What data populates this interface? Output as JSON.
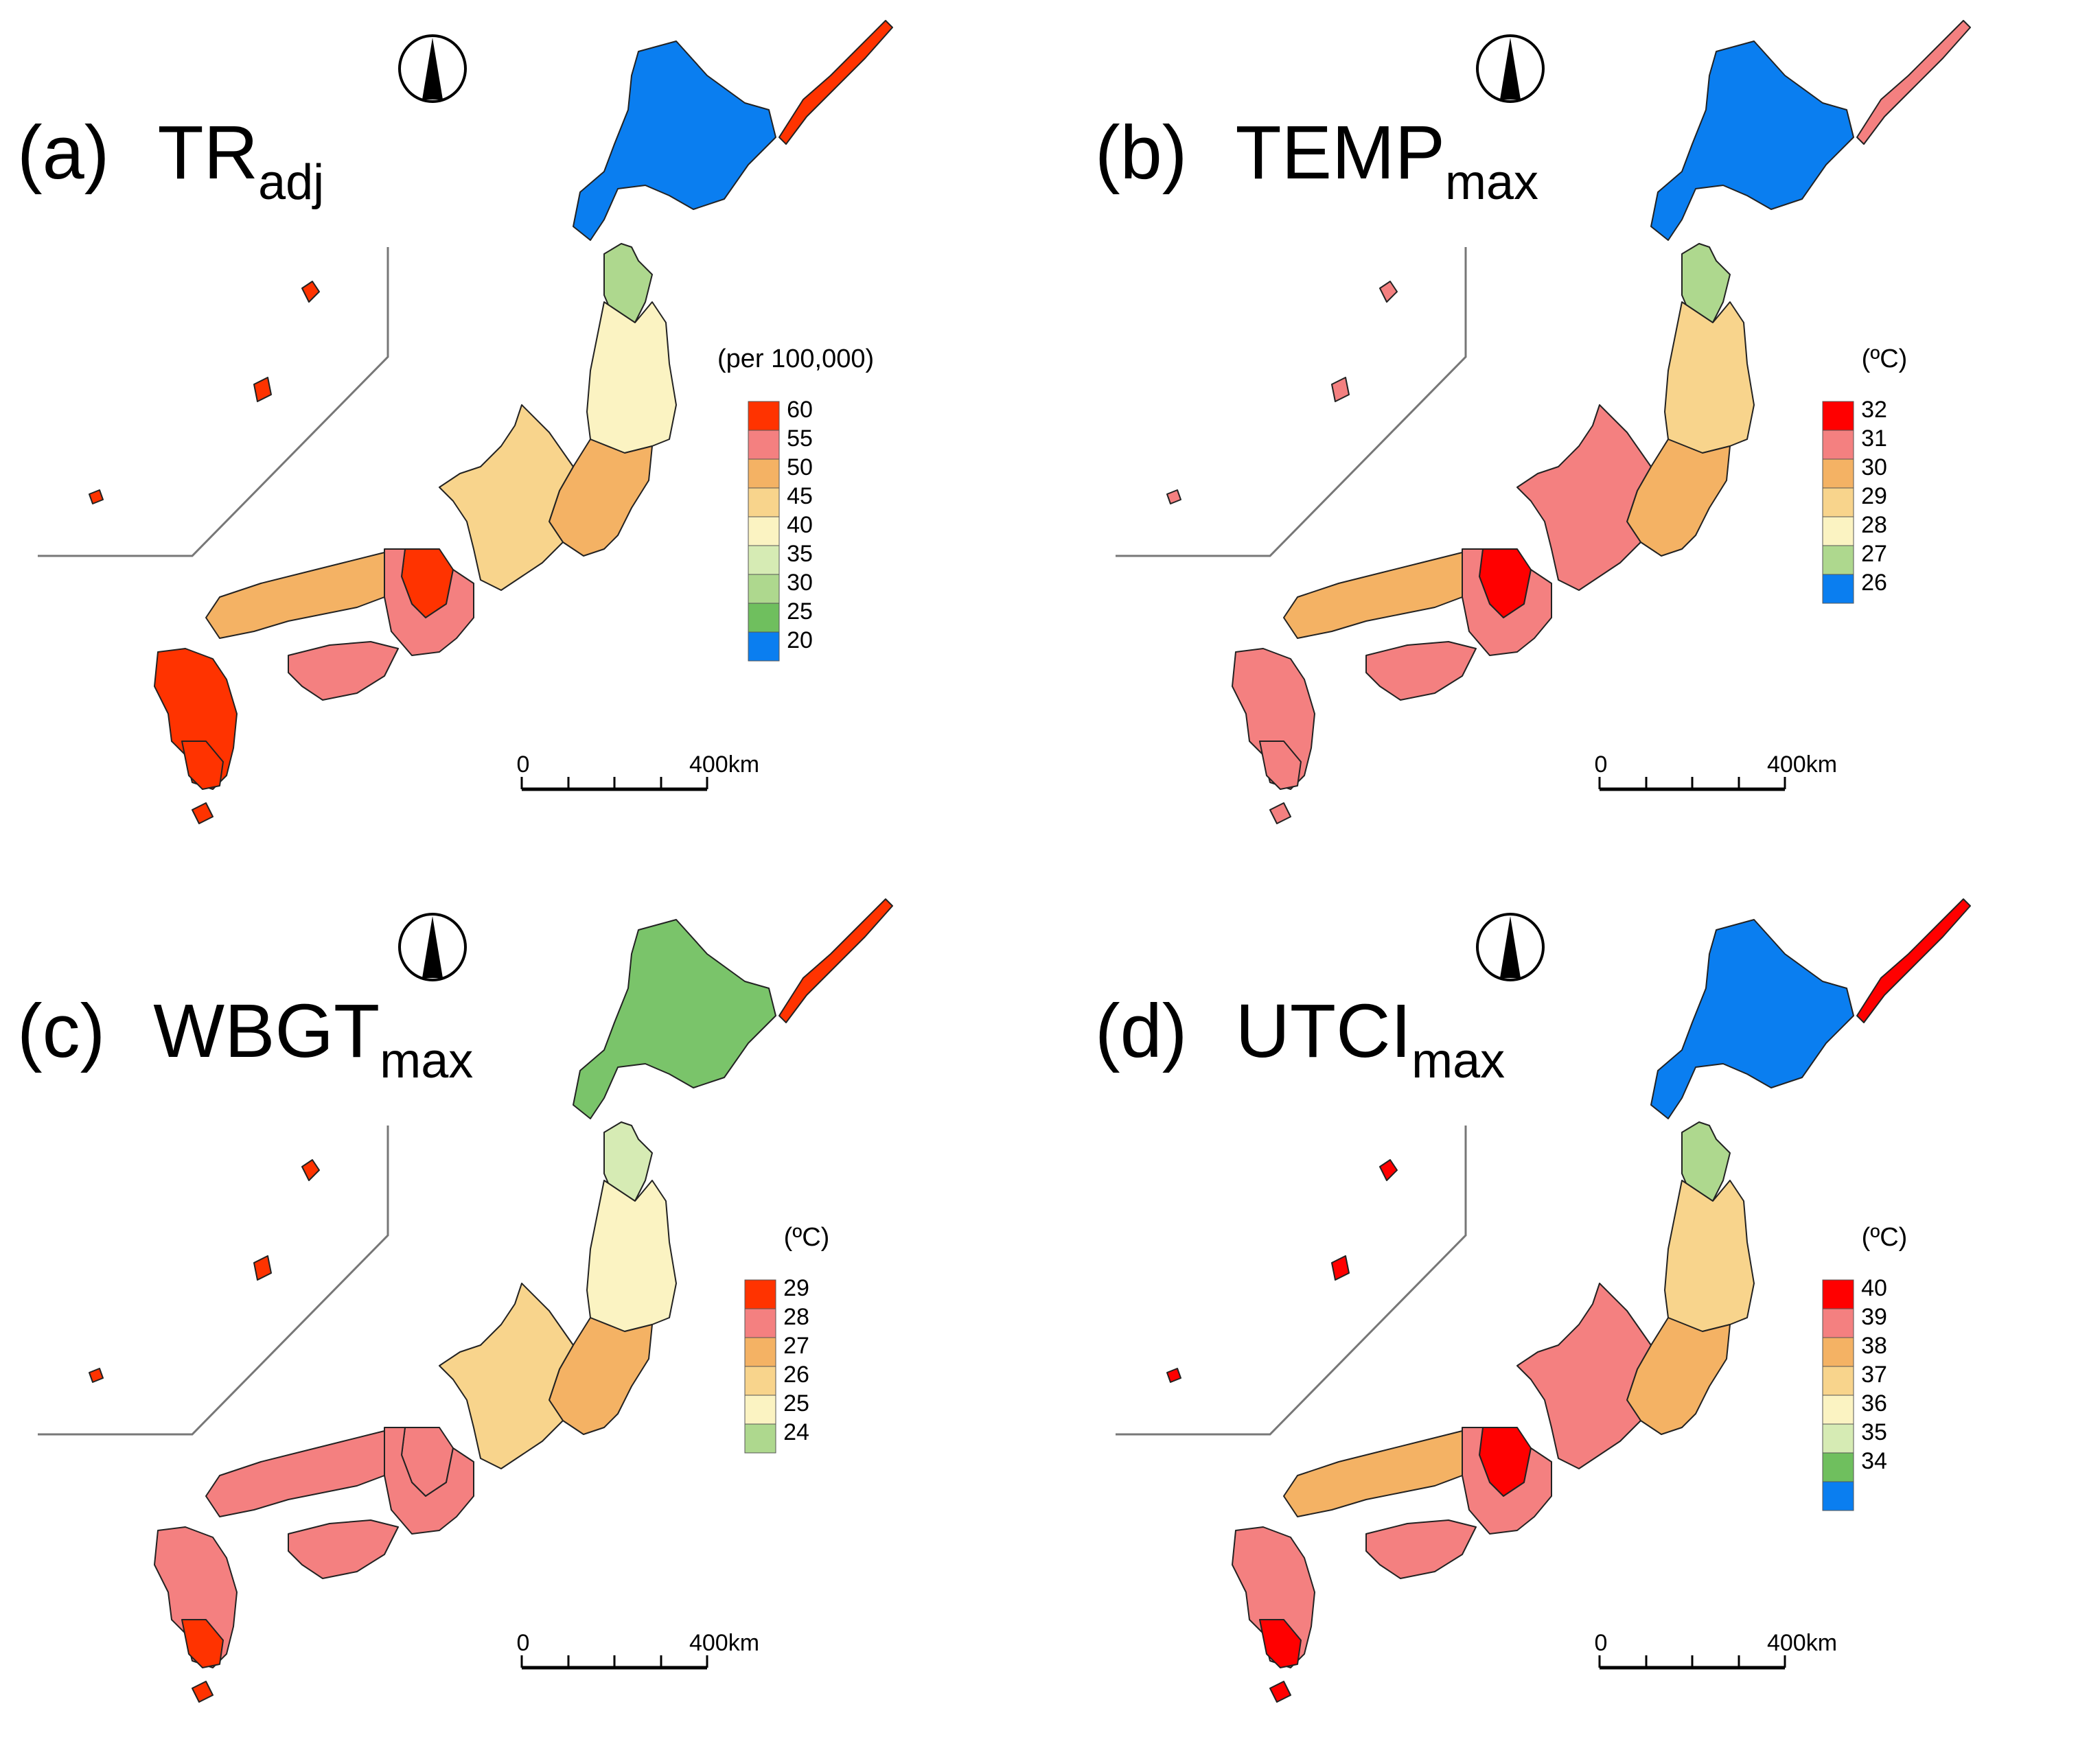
{
  "panels": [
    {
      "letter": "(a)",
      "var_main": "TR",
      "var_sub": "adj",
      "unit": "(per 100,000)",
      "legend": [
        {
          "label": "60",
          "color": "#ff3300"
        },
        {
          "label": "55",
          "color": "#f48080"
        },
        {
          "label": "50",
          "color": "#f4b264"
        },
        {
          "label": "45",
          "color": "#f8d48c"
        },
        {
          "label": "40",
          "color": "#fbf3c2"
        },
        {
          "label": "35",
          "color": "#d6ebb4"
        },
        {
          "label": "30",
          "color": "#aed88e"
        },
        {
          "label": "25",
          "color": "#6fbf5e"
        },
        {
          "label": "20",
          "color": "#0a7ef0"
        }
      ],
      "scale": {
        "start": "0",
        "end": "400km"
      },
      "colors": {
        "hokkaido": "#0a7ef0",
        "tohoku_north": "#aed88e",
        "tohoku": "#fbf3c2",
        "kanto": "#f4b264",
        "chubu": "#f8d48c",
        "kinki": "#f48080",
        "chugoku": "#f4b264",
        "shikoku": "#f48080",
        "kyushu": "#ff3300",
        "okinawa": "#ff3300",
        "hot1": "#ff3300",
        "hot2": "#ff3300"
      }
    },
    {
      "letter": "(b)",
      "var_main": "TEMP",
      "var_sub": "max",
      "unit": "(ºC)",
      "legend": [
        {
          "label": "32",
          "color": "#ff0000"
        },
        {
          "label": "31",
          "color": "#f48080"
        },
        {
          "label": "30",
          "color": "#f4b264"
        },
        {
          "label": "29",
          "color": "#f8d48c"
        },
        {
          "label": "28",
          "color": "#fbf3c2"
        },
        {
          "label": "27",
          "color": "#aed88e"
        },
        {
          "label": "26",
          "color": "#0a7ef0"
        }
      ],
      "scale": {
        "start": "0",
        "end": "400km"
      },
      "colors": {
        "hokkaido": "#0a7ef0",
        "tohoku_north": "#aed88e",
        "tohoku": "#f8d48c",
        "kanto": "#f4b264",
        "chubu": "#f48080",
        "kinki": "#f48080",
        "chugoku": "#f4b264",
        "shikoku": "#f48080",
        "kyushu": "#f48080",
        "okinawa": "#f48080",
        "hot1": "#ff0000",
        "hot2": "#f48080"
      }
    },
    {
      "letter": "(c)",
      "var_main": "WBGT",
      "var_sub": "max",
      "unit": "(ºC)",
      "legend": [
        {
          "label": "29",
          "color": "#ff3300"
        },
        {
          "label": "28",
          "color": "#f48080"
        },
        {
          "label": "27",
          "color": "#f4b264"
        },
        {
          "label": "26",
          "color": "#f8d48c"
        },
        {
          "label": "25",
          "color": "#fbf3c2"
        },
        {
          "label": "24",
          "color": "#aed88e"
        }
      ],
      "scale": {
        "start": "0",
        "end": "400km"
      },
      "colors": {
        "hokkaido": "#7ac46a",
        "tohoku_north": "#d6ebb4",
        "tohoku": "#fbf3c2",
        "kanto": "#f4b264",
        "chubu": "#f8d48c",
        "kinki": "#f48080",
        "chugoku": "#f48080",
        "shikoku": "#f48080",
        "kyushu": "#f48080",
        "okinawa": "#ff3300",
        "hot1": "#f48080",
        "hot2": "#ff3300"
      }
    },
    {
      "letter": "(d)",
      "var_main": "UTCI",
      "var_sub": "max",
      "unit": "(ºC)",
      "legend": [
        {
          "label": "40",
          "color": "#ff0000"
        },
        {
          "label": "39",
          "color": "#f48080"
        },
        {
          "label": "38",
          "color": "#f4b264"
        },
        {
          "label": "37",
          "color": "#f8d48c"
        },
        {
          "label": "36",
          "color": "#fbf3c2"
        },
        {
          "label": "35",
          "color": "#d6ebb4"
        },
        {
          "label": "34",
          "color": "#6fbf5e"
        },
        {
          "label": "",
          "color": "#0a7ef0"
        }
      ],
      "scale": {
        "start": "0",
        "end": "400km"
      },
      "colors": {
        "hokkaido": "#0a7ef0",
        "tohoku_north": "#aed88e",
        "tohoku": "#f8d48c",
        "kanto": "#f4b264",
        "chubu": "#f48080",
        "kinki": "#f48080",
        "chugoku": "#f4b264",
        "shikoku": "#f48080",
        "kyushu": "#f48080",
        "okinawa": "#ff0000",
        "hot1": "#ff0000",
        "hot2": "#ff0000"
      }
    }
  ]
}
